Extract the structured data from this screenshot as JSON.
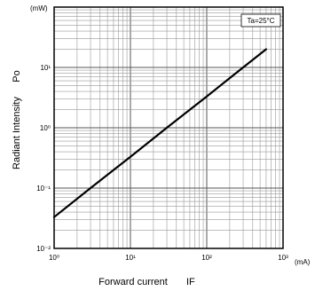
{
  "chart_data": {
    "type": "line",
    "xscale": "log",
    "yscale": "log",
    "xlim": [
      1,
      1000
    ],
    "ylim": [
      0.01,
      100
    ],
    "xlabel": "Forward current",
    "xlabel_symbol": "IF",
    "x_unit": "(mA)",
    "ylabel": "Radiant Intensity",
    "ylabel_symbol": "Po",
    "y_unit": "(mW)",
    "x_ticks": [
      1,
      10,
      100,
      1000
    ],
    "x_tick_labels": [
      "10⁰",
      "10¹",
      "10²",
      "10³"
    ],
    "y_ticks": [
      0.01,
      0.1,
      1,
      10
    ],
    "y_tick_labels": [
      "10⁻²",
      "10⁻¹",
      "10⁰",
      "10¹"
    ],
    "grid": true,
    "annotation": "Ta=25°C",
    "series": [
      {
        "x": [
          1,
          3,
          10,
          30,
          100,
          300,
          600
        ],
        "y": [
          0.033,
          0.1,
          0.33,
          1.0,
          3.3,
          10,
          20
        ]
      }
    ]
  }
}
